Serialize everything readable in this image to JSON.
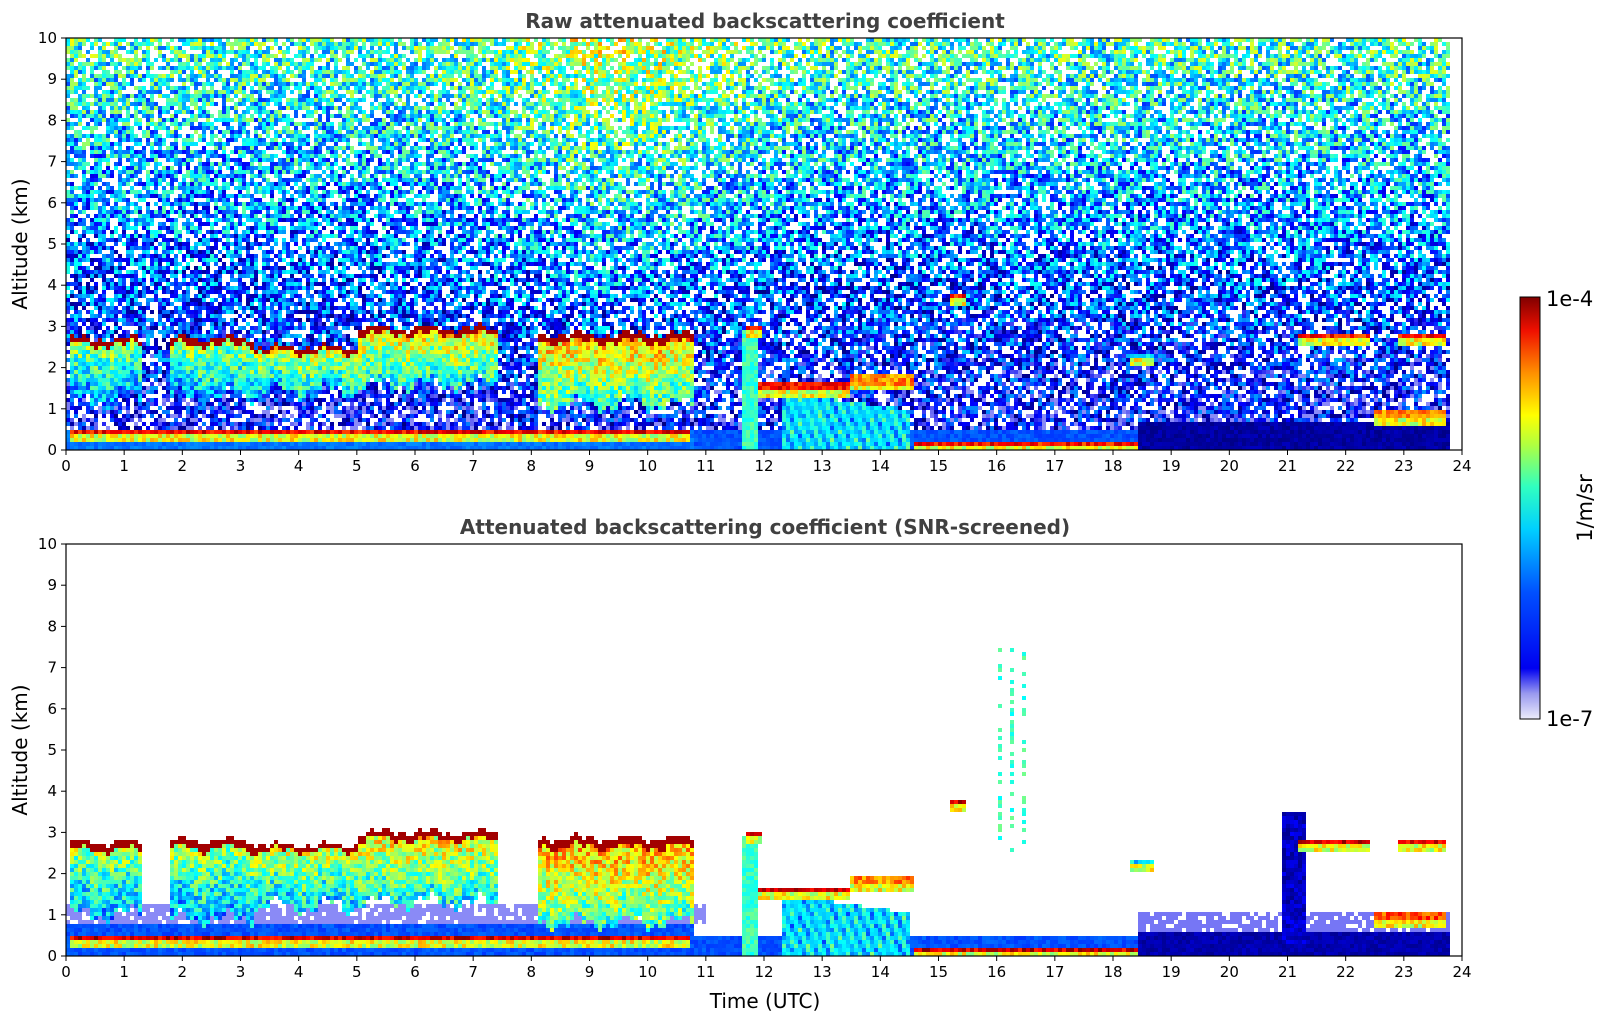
{
  "chart_data": [
    {
      "type": "heatmap",
      "title": "Raw attenuated backscattering coefficient",
      "xlabel": "",
      "ylabel": "Altitude (km)",
      "xlim": [
        0,
        24
      ],
      "ylim": [
        0,
        10
      ],
      "x_ticks": [
        "0",
        "1",
        "2",
        "3",
        "4",
        "5",
        "6",
        "7",
        "8",
        "9",
        "10",
        "11",
        "12",
        "13",
        "14",
        "15",
        "16",
        "17",
        "18",
        "19",
        "20",
        "21",
        "22",
        "23",
        "24"
      ],
      "y_ticks": [
        "0",
        "1",
        "2",
        "3",
        "4",
        "5",
        "6",
        "7",
        "8",
        "9",
        "10"
      ],
      "data_end_time": 23.8,
      "noise_level": 0.35,
      "features": [
        {
          "kind": "aerosol",
          "t0": 0.0,
          "t1": 10.8,
          "z0": 0.0,
          "z1": 0.45,
          "val": 0.33
        },
        {
          "kind": "layer",
          "t0": 0.1,
          "t1": 10.7,
          "z": 0.4,
          "thick": 0.12,
          "val": 0.97
        },
        {
          "kind": "cloud",
          "t0": 0.1,
          "t1": 1.3,
          "zbase": 1.2,
          "ztop": 2.7,
          "val": 0.6
        },
        {
          "kind": "cloud",
          "t0": 1.8,
          "t1": 3.2,
          "zbase": 1.3,
          "ztop": 2.7,
          "val": 0.62
        },
        {
          "kind": "cloud",
          "t0": 3.2,
          "t1": 5.0,
          "zbase": 1.4,
          "ztop": 2.5,
          "val": 0.66
        },
        {
          "kind": "cloud",
          "t0": 5.0,
          "t1": 7.4,
          "zbase": 1.6,
          "ztop": 2.95,
          "val": 0.7
        },
        {
          "kind": "cloud",
          "t0": 8.1,
          "t1": 10.8,
          "zbase": 1.1,
          "ztop": 2.8,
          "val": 0.74
        },
        {
          "kind": "aerosol",
          "t0": 10.8,
          "t1": 18.4,
          "z0": 0.0,
          "z1": 0.5,
          "val": 0.3
        },
        {
          "kind": "layer",
          "t0": 11.7,
          "t1": 11.95,
          "z": 2.95,
          "thick": 0.15,
          "val": 0.95
        },
        {
          "kind": "column",
          "t0": 11.6,
          "t1": 11.9,
          "z0": 0.0,
          "z1": 2.9,
          "val": 0.5
        },
        {
          "kind": "layer",
          "t0": 11.9,
          "t1": 13.5,
          "z": 1.55,
          "thick": 0.12,
          "val": 0.95
        },
        {
          "kind": "plume",
          "t0": 12.3,
          "t1": 14.5,
          "z0": 0.0,
          "z1": 1.4,
          "val": 0.42
        },
        {
          "kind": "layer",
          "t0": 13.5,
          "t1": 14.6,
          "z": 1.7,
          "thick": 0.25,
          "val": 0.85
        },
        {
          "kind": "layer",
          "t0": 14.6,
          "t1": 18.4,
          "z": 0.15,
          "thick": 0.1,
          "val": 0.95
        },
        {
          "kind": "layer",
          "t0": 15.2,
          "t1": 15.5,
          "z": 3.75,
          "thick": 0.12,
          "val": 0.95
        },
        {
          "kind": "layer",
          "t0": 18.3,
          "t1": 18.7,
          "z": 2.3,
          "thick": 0.12,
          "val": 0.5
        },
        {
          "kind": "aerosol",
          "t0": 18.4,
          "t1": 23.8,
          "z0": 0.0,
          "z1": 0.7,
          "val": 0.15
        },
        {
          "kind": "layer",
          "t0": 21.2,
          "t1": 22.4,
          "z": 2.75,
          "thick": 0.12,
          "val": 0.95
        },
        {
          "kind": "layer",
          "t0": 22.9,
          "t1": 23.7,
          "z": 2.8,
          "thick": 0.1,
          "val": 0.95
        },
        {
          "kind": "layer",
          "t0": 22.5,
          "t1": 23.75,
          "z": 0.85,
          "thick": 0.2,
          "val": 0.85
        }
      ]
    },
    {
      "type": "heatmap",
      "title": "Attenuated backscattering coefficient (SNR-screened)",
      "xlabel": "Time (UTC)",
      "ylabel": "Altitude (km)",
      "xlim": [
        0,
        24
      ],
      "ylim": [
        0,
        10
      ],
      "x_ticks": [
        "0",
        "1",
        "2",
        "3",
        "4",
        "5",
        "6",
        "7",
        "8",
        "9",
        "10",
        "11",
        "12",
        "13",
        "14",
        "15",
        "16",
        "17",
        "18",
        "19",
        "20",
        "21",
        "22",
        "23",
        "24"
      ],
      "y_ticks": [
        "0",
        "1",
        "2",
        "3",
        "4",
        "5",
        "6",
        "7",
        "8",
        "9",
        "10"
      ],
      "data_end_time": 23.8,
      "noise_level": 0.0,
      "features": [
        {
          "kind": "aerosol",
          "t0": 0.0,
          "t1": 10.8,
          "z0": 0.0,
          "z1": 0.75,
          "val": 0.3
        },
        {
          "kind": "layer",
          "t0": 0.1,
          "t1": 10.7,
          "z": 0.45,
          "thick": 0.12,
          "val": 1.0
        },
        {
          "kind": "haze",
          "t0": 0.0,
          "t1": 11.0,
          "z0": 0.75,
          "z1": 1.3,
          "val": 0.05
        },
        {
          "kind": "cloud",
          "t0": 0.1,
          "t1": 1.3,
          "zbase": 1.0,
          "ztop": 2.75,
          "val": 0.62
        },
        {
          "kind": "cloud",
          "t0": 1.8,
          "t1": 3.2,
          "zbase": 0.9,
          "ztop": 2.8,
          "val": 0.62
        },
        {
          "kind": "cloud",
          "t0": 3.2,
          "t1": 5.0,
          "zbase": 1.2,
          "ztop": 2.7,
          "val": 0.66
        },
        {
          "kind": "cloud",
          "t0": 5.0,
          "t1": 7.4,
          "zbase": 1.3,
          "ztop": 3.0,
          "val": 0.7
        },
        {
          "kind": "cloud",
          "t0": 8.1,
          "t1": 10.8,
          "zbase": 0.8,
          "ztop": 2.85,
          "val": 0.76
        },
        {
          "kind": "aerosol",
          "t0": 10.8,
          "t1": 18.4,
          "z0": 0.0,
          "z1": 0.5,
          "val": 0.3
        },
        {
          "kind": "layer",
          "t0": 11.7,
          "t1": 11.95,
          "z": 2.95,
          "thick": 0.15,
          "val": 1.0
        },
        {
          "kind": "column",
          "t0": 11.6,
          "t1": 11.9,
          "z0": 0.0,
          "z1": 2.9,
          "val": 0.5
        },
        {
          "kind": "layer",
          "t0": 11.9,
          "t1": 13.5,
          "z": 1.6,
          "thick": 0.12,
          "val": 1.0
        },
        {
          "kind": "plume",
          "t0": 12.3,
          "t1": 14.5,
          "z0": 0.0,
          "z1": 1.5,
          "val": 0.42
        },
        {
          "kind": "layer",
          "t0": 13.5,
          "t1": 14.6,
          "z": 1.85,
          "thick": 0.25,
          "val": 0.85
        },
        {
          "kind": "layer",
          "t0": 14.6,
          "t1": 18.4,
          "z": 0.15,
          "thick": 0.1,
          "val": 1.0
        },
        {
          "kind": "layer",
          "t0": 15.2,
          "t1": 15.5,
          "z": 3.75,
          "thick": 0.12,
          "val": 1.0
        },
        {
          "kind": "streaks",
          "t0": 15.5,
          "t1": 16.6,
          "z0": 2.5,
          "z1": 7.5,
          "val": 0.45
        },
        {
          "kind": "layer",
          "t0": 18.3,
          "t1": 18.7,
          "z": 2.3,
          "thick": 0.12,
          "val": 0.5
        },
        {
          "kind": "haze",
          "t0": 18.4,
          "t1": 23.8,
          "z0": 0.6,
          "z1": 1.1,
          "val": 0.06
        },
        {
          "kind": "aerosol",
          "t0": 18.4,
          "t1": 23.8,
          "z0": 0.0,
          "z1": 0.6,
          "val": 0.16
        },
        {
          "kind": "column",
          "t0": 20.9,
          "t1": 21.3,
          "z0": 0.3,
          "z1": 3.5,
          "val": 0.18
        },
        {
          "kind": "layer",
          "t0": 21.2,
          "t1": 22.4,
          "z": 2.75,
          "thick": 0.12,
          "val": 1.0
        },
        {
          "kind": "layer",
          "t0": 22.9,
          "t1": 23.7,
          "z": 2.8,
          "thick": 0.1,
          "val": 1.0
        },
        {
          "kind": "layer",
          "t0": 22.5,
          "t1": 23.75,
          "z": 0.95,
          "thick": 0.2,
          "val": 0.9
        }
      ]
    }
  ],
  "colorbar": {
    "max_label": "1e-4",
    "min_label": "1e-7",
    "unit_label": "1/m/sr",
    "colormap": "jet",
    "scale": "log"
  },
  "colors": {
    "title_gray": "#404040",
    "background": "#ffffff"
  }
}
